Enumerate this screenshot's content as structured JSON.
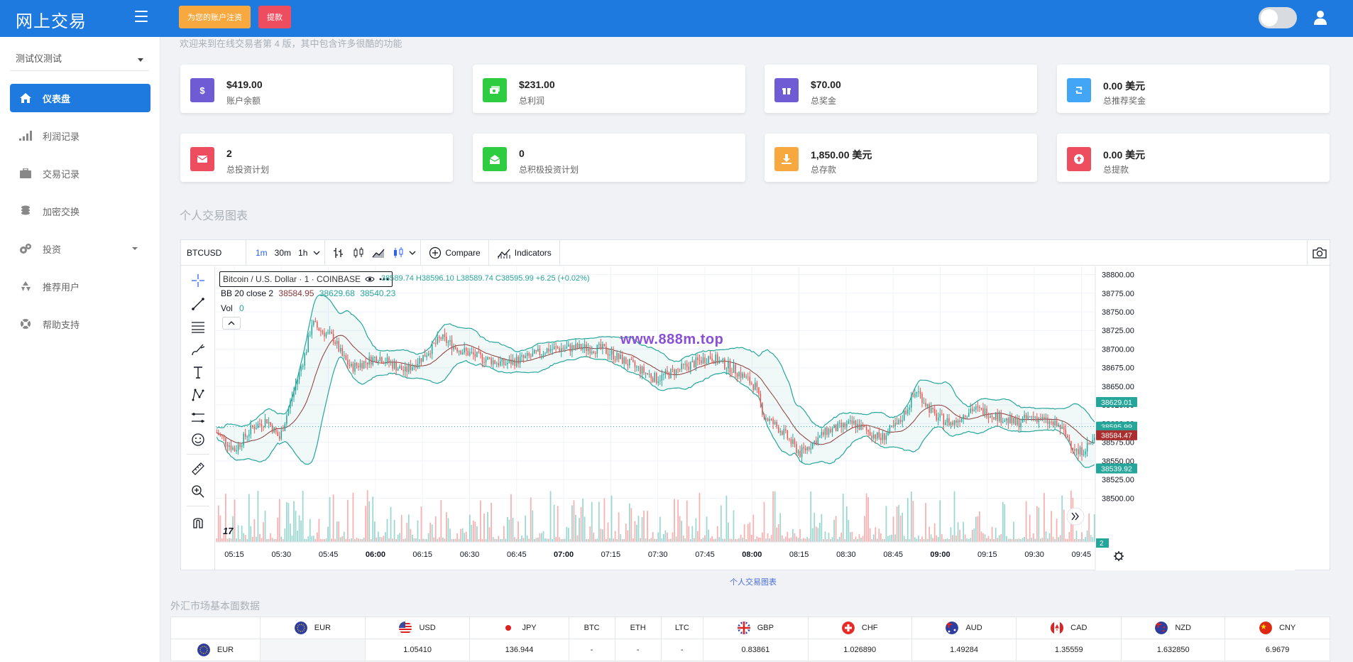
{
  "header": {
    "brand": "网上交易",
    "register_label": "为您的账户注资",
    "withdraw_label": "提款"
  },
  "sidebar": {
    "account": "测试仪测试",
    "items": [
      {
        "label": "仪表盘",
        "icon": "home-icon"
      },
      {
        "label": "利润记录",
        "icon": "signal-bars-icon"
      },
      {
        "label": "交易记录",
        "icon": "briefcase-icon"
      },
      {
        "label": "加密交换",
        "icon": "coins-icon"
      },
      {
        "label": "投资",
        "icon": "cogs-icon"
      },
      {
        "label": "推荐用户",
        "icon": "recycle-icon"
      },
      {
        "label": "帮助支持",
        "icon": "lifebuoy-icon"
      }
    ]
  },
  "welcome": "欢迎来到在线交易者第 4 版，其中包含许多很酷的功能",
  "cards": [
    {
      "value": "$419.00",
      "label": "账户余额",
      "color": "#6f5bd3",
      "icon": "dollar-icon"
    },
    {
      "value": "$231.00",
      "label": "总利润",
      "color": "#2ecc40",
      "icon": "money-icon"
    },
    {
      "value": "$70.00",
      "label": "总奖金",
      "color": "#6f5bd3",
      "icon": "gift-icon"
    },
    {
      "value": "0.00 美元",
      "label": "总推荐奖金",
      "color": "#42a5f5",
      "icon": "retweet-icon"
    },
    {
      "value": "2",
      "label": "总投资计划",
      "color": "#ee4d5f",
      "icon": "envelope-icon"
    },
    {
      "value": "0",
      "label": "总积极投资计划",
      "color": "#2ecc40",
      "icon": "envelope-open-icon"
    },
    {
      "value": "1,850.00 美元",
      "label": "总存款",
      "color": "#f7a940",
      "icon": "download-icon"
    },
    {
      "value": "0.00 美元",
      "label": "总提款",
      "color": "#ee4d5f",
      "icon": "upload-icon"
    }
  ],
  "chart_section_title": "个人交易图表",
  "chart_caption": "个人交易图表",
  "tv": {
    "symbol": "BTCUSD",
    "intervals": [
      "1m",
      "30m",
      "1h"
    ],
    "compare": "Compare",
    "indicators": "Indicators",
    "legend_symbol": "Bitcoin / U.S. Dollar · 1 · COINBASE",
    "legend_ohlc": "38589.74 H38596.10 L38589.74 C38595.99 +6.25 (+0.02%)",
    "bb_label": "BB 20 close 2",
    "bb_values": [
      "38584.95",
      "38629.68",
      "38540.23"
    ],
    "vol_label": "Vol",
    "vol_value": "0",
    "watermark": "www.888m.top",
    "price_badges": [
      {
        "value": "38629.01",
        "color": "#26a69a",
        "y": 38629.01
      },
      {
        "value": "38595.99",
        "color": "#26a69a",
        "y": 38595.99
      },
      {
        "value": "38588.13",
        "color": "#26a69a",
        "y": 38588.13
      },
      {
        "value": "38584.47",
        "color": "#ab2e2e",
        "y": 38584.47
      },
      {
        "value": "38539.92",
        "color": "#26a69a",
        "y": 38539.92
      }
    ],
    "vol_badge": "2"
  },
  "chart_data": {
    "type": "candlestick",
    "ylim": [
      38487,
      38811
    ],
    "y_ticks": [
      "38800.00",
      "38775.00",
      "38750.00",
      "38725.00",
      "38700.00",
      "38675.00",
      "38650.00",
      "38625.00",
      "38600.00",
      "38575.00",
      "38550.00",
      "38525.00",
      "38500.00"
    ],
    "x_ticks": [
      "05:15",
      "05:30",
      "05:45",
      "06:00",
      "06:15",
      "06:30",
      "06:45",
      "07:00",
      "07:15",
      "07:30",
      "07:45",
      "08:00",
      "08:15",
      "08:30",
      "08:45",
      "09:00",
      "09:15",
      "09:30",
      "09:45"
    ],
    "x_ticks_bold": [
      "06:00",
      "07:00",
      "08:00",
      "09:00"
    ],
    "close_path": [
      [
        0,
        38588
      ],
      [
        10,
        38565
      ],
      [
        20,
        38595
      ],
      [
        28,
        38605
      ],
      [
        35,
        38580
      ],
      [
        45,
        38660
      ],
      [
        50,
        38700
      ],
      [
        53,
        38735
      ],
      [
        58,
        38725
      ],
      [
        65,
        38715
      ],
      [
        70,
        38690
      ],
      [
        75,
        38675
      ],
      [
        90,
        38690
      ],
      [
        105,
        38670
      ],
      [
        115,
        38690
      ],
      [
        125,
        38715
      ],
      [
        135,
        38700
      ],
      [
        145,
        38690
      ],
      [
        160,
        38680
      ],
      [
        175,
        38690
      ],
      [
        185,
        38700
      ],
      [
        200,
        38702
      ],
      [
        215,
        38700
      ],
      [
        230,
        38680
      ],
      [
        245,
        38660
      ],
      [
        255,
        38670
      ],
      [
        275,
        38690
      ],
      [
        290,
        38670
      ],
      [
        300,
        38650
      ],
      [
        305,
        38610
      ],
      [
        315,
        38590
      ],
      [
        325,
        38560
      ],
      [
        340,
        38590
      ],
      [
        355,
        38600
      ],
      [
        370,
        38580
      ],
      [
        380,
        38600
      ],
      [
        390,
        38645
      ],
      [
        400,
        38610
      ],
      [
        410,
        38600
      ],
      [
        420,
        38620
      ],
      [
        430,
        38615
      ],
      [
        445,
        38600
      ],
      [
        455,
        38610
      ],
      [
        470,
        38595
      ],
      [
        480,
        38560
      ],
      [
        490,
        38580
      ]
    ],
    "candle_count": 490,
    "colors": {
      "up": "#26a69a",
      "down": "#ef5350",
      "bb_line": "#8b3a3a",
      "bb_band": "#26a69a"
    }
  },
  "fx_section_title": "外汇市场基本面数据",
  "fx": {
    "headers": [
      {
        "code": "EUR",
        "flag": "eu"
      },
      {
        "code": "USD",
        "flag": "us"
      },
      {
        "code": "JPY",
        "flag": "jp"
      },
      {
        "code": "BTC",
        "flag": ""
      },
      {
        "code": "ETH",
        "flag": ""
      },
      {
        "code": "LTC",
        "flag": ""
      },
      {
        "code": "GBP",
        "flag": "gb"
      },
      {
        "code": "CHF",
        "flag": "ch"
      },
      {
        "code": "AUD",
        "flag": "au"
      },
      {
        "code": "CAD",
        "flag": "ca"
      },
      {
        "code": "NZD",
        "flag": "nz"
      },
      {
        "code": "CNY",
        "flag": "cn"
      }
    ],
    "rows": [
      {
        "code": "EUR",
        "flag": "eu",
        "values": [
          "",
          "1.05410",
          "136.944",
          "-",
          "-",
          "-",
          "0.83861",
          "1.026890",
          "1.49284",
          "1.35559",
          "1.632850",
          "6.9679"
        ]
      }
    ]
  }
}
